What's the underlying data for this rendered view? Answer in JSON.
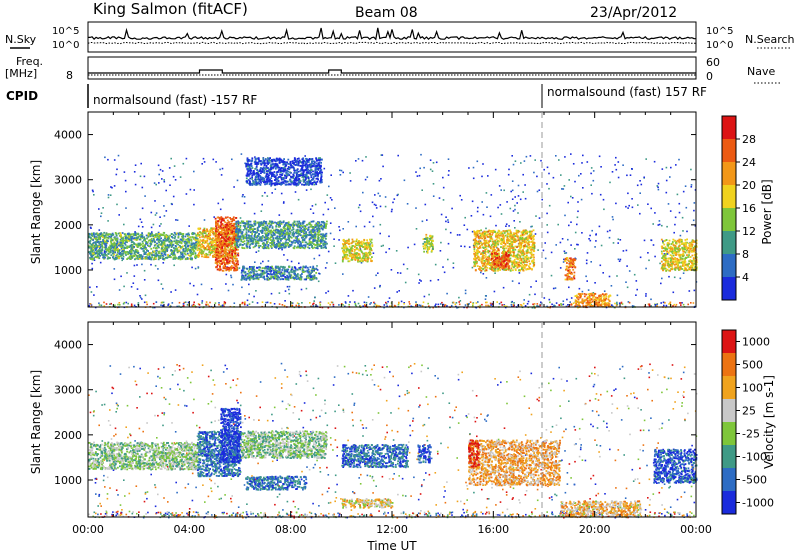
{
  "header": {
    "station": "King Salmon (fitACF)",
    "beam": "Beam 08",
    "date": "23/Apr/2012"
  },
  "top_panels": {
    "nsky_label": "N.Sky",
    "nsky_ticks": [
      "10^5",
      "10^0"
    ],
    "nsearch_label": "N.Search",
    "nsearch_ticks": [
      "10^5",
      "10^0"
    ],
    "freq_label_line1": "Freq.",
    "freq_label_line2": "[MHz]",
    "freq_ticks": [
      "8"
    ],
    "nave_label": "Nave",
    "nave_ticks": [
      "60",
      "0"
    ],
    "cpid_label": "CPID",
    "cpid_segments": [
      {
        "text": "normalsound (fast) -157 RF",
        "start_hour": 0,
        "end_hour": 18
      },
      {
        "text": "normalsound (fast) 157 RF",
        "start_hour": 18,
        "end_hour": 24
      }
    ]
  },
  "chart_data": [
    {
      "type": "heatmap",
      "name": "power_panel",
      "ylabel": "Slant Range [km]",
      "xlabel": "",
      "xlim": [
        0,
        24
      ],
      "ylim": [
        180,
        4500
      ],
      "yticks": [
        "1000",
        "2000",
        "3000",
        "4000"
      ],
      "colorbar": {
        "label": "Power [dB]",
        "ticks": [
          "4",
          "8",
          "12",
          "16",
          "20",
          "24",
          "28"
        ],
        "colors": [
          "#1a2bdc",
          "#2d6cc4",
          "#3f9a86",
          "#7ec63a",
          "#f0d21e",
          "#f29718",
          "#ec5a12",
          "#dc1414"
        ]
      },
      "regions": [
        {
          "t0": 0.0,
          "t1": 4.3,
          "r0": 1250,
          "r1": 1850,
          "level": 0.35
        },
        {
          "t0": 4.3,
          "t1": 5.8,
          "r0": 1300,
          "r1": 1950,
          "level": 0.6
        },
        {
          "t0": 5.0,
          "t1": 5.9,
          "r0": 1000,
          "r1": 2200,
          "level": 0.8
        },
        {
          "t0": 5.8,
          "t1": 9.4,
          "r0": 1500,
          "r1": 2100,
          "level": 0.3
        },
        {
          "t0": 6.2,
          "t1": 9.2,
          "r0": 2900,
          "r1": 3500,
          "level": 0.1
        },
        {
          "t0": 6.0,
          "t1": 9.0,
          "r0": 800,
          "r1": 1100,
          "level": 0.25
        },
        {
          "t0": 10.0,
          "t1": 11.2,
          "r0": 1200,
          "r1": 1700,
          "level": 0.55
        },
        {
          "t0": 13.2,
          "t1": 13.6,
          "r0": 1400,
          "r1": 1800,
          "level": 0.5
        },
        {
          "t0": 15.2,
          "t1": 17.6,
          "r0": 1000,
          "r1": 1900,
          "level": 0.6
        },
        {
          "t0": 15.9,
          "t1": 16.6,
          "r0": 1050,
          "r1": 1400,
          "level": 0.85
        },
        {
          "t0": 19.2,
          "t1": 20.6,
          "r0": 200,
          "r1": 500,
          "level": 0.7
        },
        {
          "t0": 22.6,
          "t1": 24.0,
          "r0": 1000,
          "r1": 1700,
          "level": 0.55
        },
        {
          "t0": 18.8,
          "t1": 19.2,
          "r0": 800,
          "r1": 1300,
          "level": 0.75
        }
      ]
    },
    {
      "type": "heatmap",
      "name": "velocity_panel",
      "ylabel": "Slant Range [km]",
      "xlabel": "Time UT",
      "xlim": [
        0,
        24
      ],
      "ylim": [
        180,
        4500
      ],
      "xticks": [
        "00:00",
        "04:00",
        "08:00",
        "12:00",
        "16:00",
        "20:00",
        "00:00"
      ],
      "yticks": [
        "1000",
        "2000",
        "3000",
        "4000"
      ],
      "colorbar": {
        "label": "Velocity [m s-1]",
        "ticks": [
          "1000",
          "500",
          "100",
          "25",
          "-25",
          "-100",
          "-500",
          "-1000"
        ],
        "colors": [
          "#1a2bdc",
          "#2d6cc4",
          "#3f9a86",
          "#7ec63a",
          "#c8c8c8",
          "#f0a31e",
          "#ec7312",
          "#dc1414"
        ]
      },
      "regions": [
        {
          "t0": 0.0,
          "t1": 4.3,
          "r0": 1250,
          "r1": 1850,
          "level": 0.45
        },
        {
          "t0": 4.3,
          "t1": 6.0,
          "r0": 1100,
          "r1": 2100,
          "level": 0.2
        },
        {
          "t0": 5.2,
          "t1": 6.0,
          "r0": 1400,
          "r1": 2600,
          "level": 0.05
        },
        {
          "t0": 6.0,
          "t1": 9.4,
          "r0": 1500,
          "r1": 2100,
          "level": 0.45
        },
        {
          "t0": 6.2,
          "t1": 8.6,
          "r0": 800,
          "r1": 1100,
          "level": 0.2
        },
        {
          "t0": 10.0,
          "t1": 12.6,
          "r0": 1300,
          "r1": 1800,
          "level": 0.2
        },
        {
          "t0": 13.0,
          "t1": 13.5,
          "r0": 1400,
          "r1": 1800,
          "level": 0.1
        },
        {
          "t0": 15.0,
          "t1": 18.6,
          "r0": 900,
          "r1": 1900,
          "level": 0.7
        },
        {
          "t0": 15.0,
          "t1": 15.4,
          "r0": 1300,
          "r1": 1900,
          "level": 0.95
        },
        {
          "t0": 18.6,
          "t1": 21.8,
          "r0": 200,
          "r1": 550,
          "level": 0.65
        },
        {
          "t0": 22.3,
          "t1": 24.0,
          "r0": 950,
          "r1": 1700,
          "level": 0.15
        },
        {
          "t0": 10.0,
          "t1": 12.0,
          "r0": 400,
          "r1": 600,
          "level": 0.6
        }
      ]
    }
  ]
}
